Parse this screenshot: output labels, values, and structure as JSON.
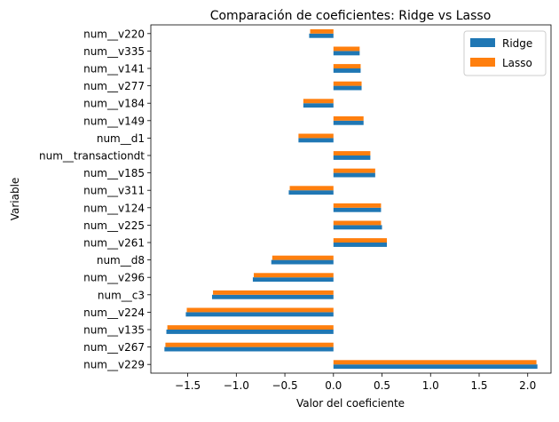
{
  "chart_data": {
    "type": "bar",
    "orientation": "horizontal",
    "title": "Comparación de coeficientes: Ridge vs Lasso",
    "xlabel": "Valor del coeficiente",
    "ylabel": "Variable",
    "categories": [
      "num__v229",
      "num__v267",
      "num__v135",
      "num__v224",
      "num__c3",
      "num__v296",
      "num__d8",
      "num__v261",
      "num__v225",
      "num__v124",
      "num__v311",
      "num__v185",
      "num__transactiondt",
      "num__d1",
      "num__v149",
      "num__v184",
      "num__v277",
      "num__v141",
      "num__v335",
      "num__v220"
    ],
    "series": [
      {
        "name": "Ridge",
        "color": "#1f77b4",
        "values": [
          2.1,
          -1.74,
          -1.72,
          -1.52,
          -1.25,
          -0.83,
          -0.64,
          0.55,
          0.5,
          0.49,
          -0.46,
          0.43,
          0.38,
          -0.36,
          0.31,
          -0.31,
          0.29,
          0.28,
          0.27,
          -0.25
        ]
      },
      {
        "name": "Lasso",
        "color": "#ff7f0e",
        "values": [
          2.09,
          -1.73,
          -1.71,
          -1.51,
          -1.24,
          -0.82,
          -0.63,
          0.55,
          0.49,
          0.49,
          -0.45,
          0.43,
          0.38,
          -0.36,
          0.31,
          -0.31,
          0.29,
          0.28,
          0.27,
          -0.24
        ]
      }
    ],
    "xticks": [
      "−1.5",
      "−1.0",
      "−0.5",
      "0.0",
      "0.5",
      "1.0",
      "1.5",
      "2.0"
    ],
    "xtick_values": [
      -1.5,
      -1.0,
      -0.5,
      0.0,
      0.5,
      1.0,
      1.5,
      2.0
    ],
    "xlim": [
      -1.88,
      2.24
    ],
    "grid": false,
    "legend_position": "top-right"
  }
}
